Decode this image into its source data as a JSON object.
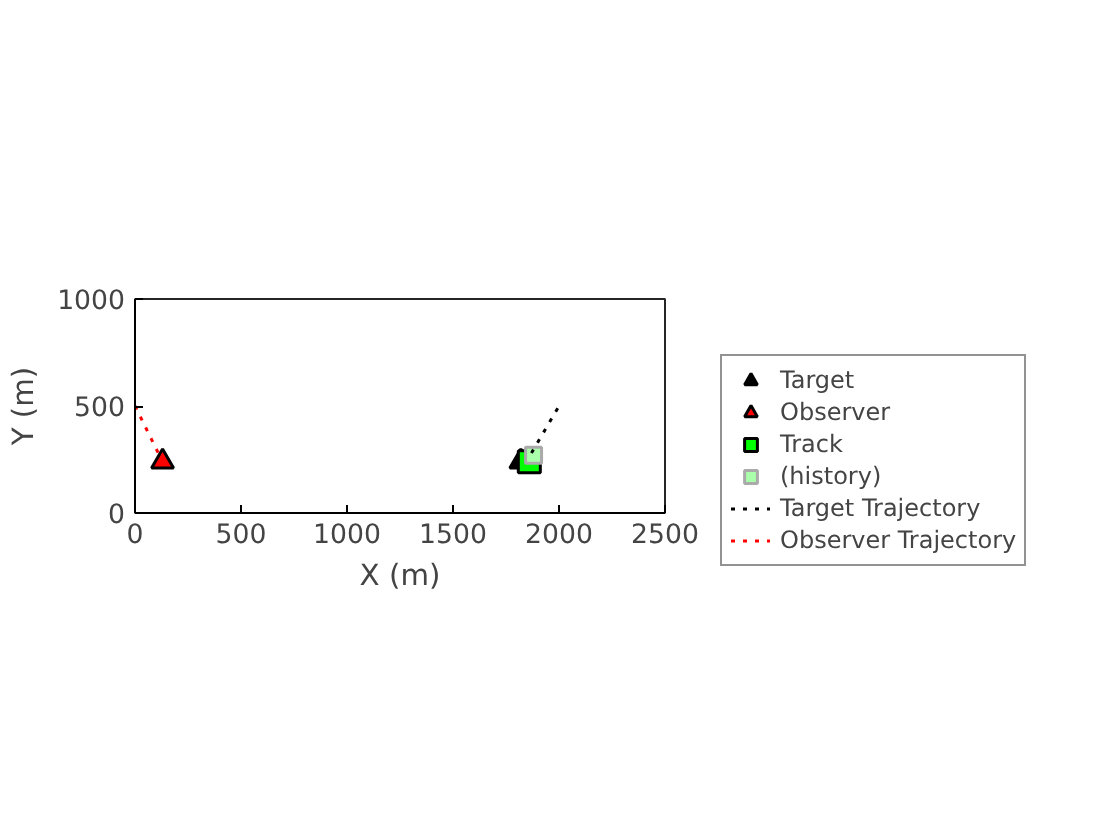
{
  "chart_data": {
    "type": "scatter",
    "xlabel": "X (m)",
    "ylabel": "Y (m)",
    "xlim": [
      0,
      2500
    ],
    "ylim": [
      0,
      1000
    ],
    "xticks": [
      0,
      500,
      1000,
      1500,
      2000,
      2500
    ],
    "yticks": [
      0,
      500,
      1000
    ],
    "grid": false,
    "legend": "right",
    "series": [
      {
        "name": "Target",
        "marker": "triangle",
        "color": "#000000",
        "x": [
          1820
        ],
        "values": [
          240
        ]
      },
      {
        "name": "Observer",
        "marker": "triangle",
        "color": "#ff0000",
        "x": [
          130
        ],
        "values": [
          240
        ]
      },
      {
        "name": "Track",
        "marker": "square",
        "color": "#00ff00",
        "x": [
          1860
        ],
        "values": [
          240
        ]
      },
      {
        "name": "(history)",
        "marker": "square",
        "color": "#aaffaa",
        "x": [
          1880
        ],
        "values": [
          270
        ]
      },
      {
        "name": "Target Trajectory",
        "type": "line",
        "line_style": "dotted",
        "color": "#000000",
        "x": [
          1870,
          2000
        ],
        "values": [
          280,
          500
        ]
      },
      {
        "name": "Observer Trajectory",
        "type": "line",
        "line_style": "dotted",
        "color": "#ff0000",
        "x": [
          0,
          130
        ],
        "values": [
          500,
          240
        ]
      }
    ]
  }
}
